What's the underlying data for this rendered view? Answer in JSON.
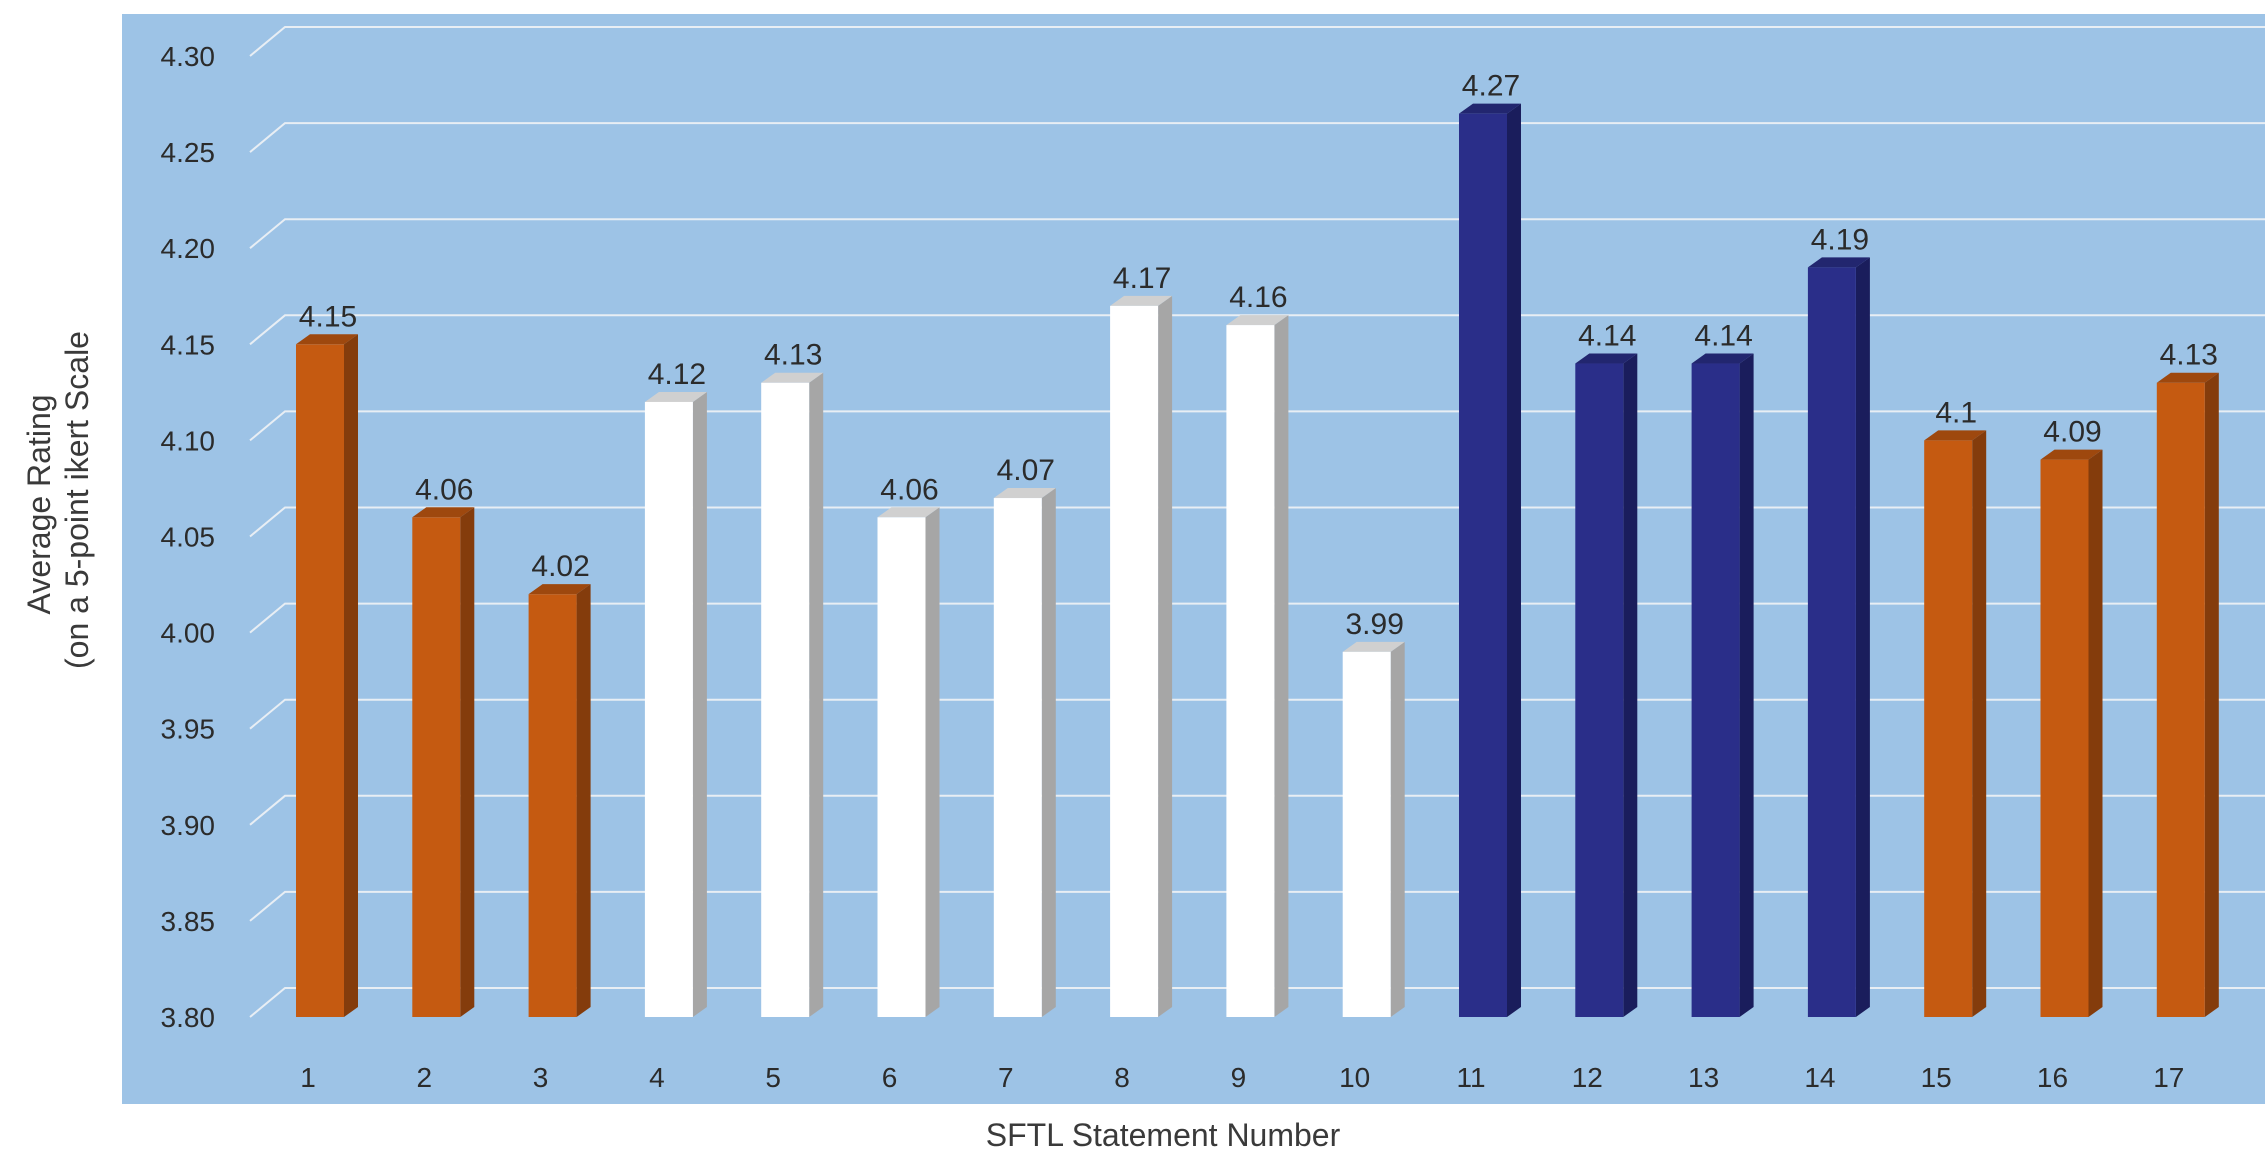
{
  "chart_data": {
    "type": "bar",
    "title": "",
    "xlabel": "SFTL Statement Number",
    "ylabel_lines": [
      "Average Rating",
      "(on a 5-point ikert Scale"
    ],
    "ylim": [
      3.8,
      4.3
    ],
    "yticks": [
      "3.80",
      "3.85",
      "3.90",
      "3.95",
      "4.00",
      "4.05",
      "4.10",
      "4.15",
      "4.20",
      "4.25",
      "4.30"
    ],
    "categories": [
      "1",
      "2",
      "3",
      "4",
      "5",
      "6",
      "7",
      "8",
      "9",
      "10",
      "11",
      "12",
      "13",
      "14",
      "15",
      "16",
      "17"
    ],
    "values": [
      4.15,
      4.06,
      4.02,
      4.12,
      4.13,
      4.06,
      4.07,
      4.17,
      4.16,
      3.99,
      4.27,
      4.14,
      4.14,
      4.19,
      4.1,
      4.09,
      4.13
    ],
    "data_labels": [
      "4.15",
      "4.06",
      "4.02",
      "4.12",
      "4.13",
      "4.06",
      "4.07",
      "4.17",
      "4.16",
      "3.99",
      "4.27",
      "4.14",
      "4.14",
      "4.19",
      "4.1",
      "4.09",
      "4.13"
    ],
    "bar_groups": [
      "orange",
      "orange",
      "orange",
      "white",
      "white",
      "white",
      "white",
      "white",
      "white",
      "white",
      "navy",
      "navy",
      "navy",
      "navy",
      "orange",
      "orange",
      "orange"
    ],
    "group_colors": {
      "orange": {
        "front": "#C55A11",
        "side": "#843C0C",
        "top": "#9E480E"
      },
      "white": {
        "front": "#FFFFFF",
        "side": "#A6A6A6",
        "top": "#D0D0D0"
      },
      "navy": {
        "front": "#2A2E89",
        "side": "#1A1D5C",
        "top": "#22266F"
      }
    },
    "plot_background": "#9DC3E6",
    "grid": true,
    "grid_color": "#E8EEF4",
    "legend": "none"
  }
}
